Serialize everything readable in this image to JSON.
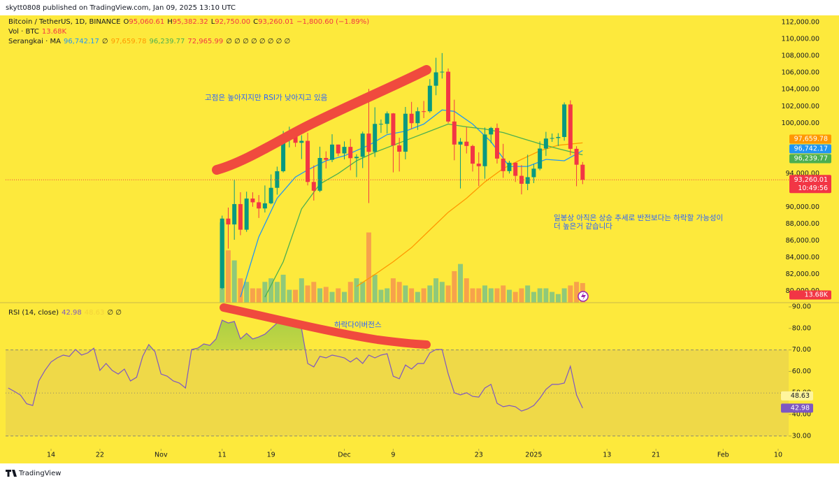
{
  "header": {
    "published": "skytt0808 published on TradingView.com, Jan 09, 2025 13:10 UTC",
    "brand": "TradingView"
  },
  "annotations": [
    "고점은 높아지지만 RSI가 낮아지고 있음",
    "하락다이버전스",
    "일봉상 아직은 상승 추세로 반전보다는 하락할 가능성이",
    "더 높은거 같습니다"
  ],
  "chart_data": [
    {
      "type": "candlestick",
      "title": "Bitcoin / TetherUS, 1D, BINANCE",
      "ohlc_legend": [
        {
          "key": "O",
          "value": "95,060.61"
        },
        {
          "key": "H",
          "value": "95,382.32"
        },
        {
          "key": "L",
          "value": "92,750.00"
        },
        {
          "key": "C",
          "value": "93,260.01"
        }
      ],
      "change": "−1,800.60 (−1.89%)",
      "x": [
        42,
        43,
        44,
        45,
        46,
        47,
        48,
        49,
        50,
        51,
        52,
        53,
        54,
        55,
        56,
        57,
        58,
        59,
        60,
        61,
        62,
        63,
        64,
        65,
        66,
        67,
        68,
        69,
        70,
        71,
        72,
        73,
        74,
        75,
        76,
        77,
        78,
        79,
        80,
        81,
        82,
        83,
        84,
        85,
        86,
        87,
        88,
        89,
        90,
        91,
        92,
        93,
        94,
        95,
        96,
        97,
        98,
        99,
        100,
        101
      ],
      "open": [
        80370,
        88648,
        87952,
        90375,
        87325,
        91032,
        90587,
        89855,
        90465,
        92310,
        94287,
        98318,
        98893,
        97672,
        97900,
        93010,
        91965,
        95863,
        95643,
        97460,
        96407,
        97185,
        95840,
        96002,
        98768,
        96593,
        99920,
        99923,
        101171,
        97356,
        96613,
        101129,
        100004,
        101424,
        101420,
        104463,
        106058,
        106133,
        100204,
        97461,
        97805,
        97291,
        95186,
        94881,
        98663,
        99430,
        95791,
        94299,
        95300,
        93738,
        92792,
        93576,
        94591,
        96984,
        98174,
        98236,
        98363,
        102235,
        96954,
        95060.61
      ],
      "high": [
        89000,
        89956,
        93265,
        91790,
        91850,
        91779,
        91449,
        92594,
        93905,
        94831,
        99073,
        99588,
        98767,
        98564,
        98871,
        94973,
        97208,
        96650,
        98692,
        97463,
        97836,
        98130,
        96305,
        99000,
        104088,
        101898,
        100437,
        101399,
        101215,
        98270,
        101938,
        102540,
        101895,
        102650,
        105250,
        107793,
        108353,
        106524,
        102800,
        98233,
        99540,
        97448,
        96538,
        99487,
        99569,
        99963,
        97544,
        95525,
        95330,
        95024,
        96250,
        95151,
        97839,
        98976,
        98778,
        98813,
        102480,
        102724,
        97258,
        95382.32
      ],
      "low": [
        80216,
        85072,
        86127,
        86668,
        87073,
        90056,
        88722,
        89376,
        90357,
        91500,
        94138,
        97122,
        97180,
        95734,
        92600,
        90791,
        91792,
        94613,
        95368,
        96092,
        95694,
        94395,
        93578,
        94660,
        90500,
        95981,
        98844,
        98772,
        94150,
        94256,
        95700,
        99311,
        99205,
        100609,
        101237,
        103333,
        105321,
        100000,
        95587,
        92232,
        96398,
        94250,
        92520,
        93396,
        97632,
        95200,
        93500,
        94014,
        93010,
        91530,
        92033,
        92870,
        94392,
        96100,
        97781,
        97291,
        97920,
        96181,
        92500,
        92750
      ],
      "close": [
        88648,
        87952,
        90375,
        87325,
        91032,
        90587,
        89855,
        90464,
        92310,
        94286,
        98318,
        98893,
        97672,
        97900,
        93010,
        91965,
        95863,
        95643,
        97460,
        96407,
        97185,
        95840,
        96002,
        98768,
        96593,
        99920,
        99923,
        101171,
        97356,
        96613,
        101129,
        100004,
        101424,
        101420,
        104463,
        106058,
        106133,
        100204,
        97461,
        97805,
        97291,
        95186,
        94881,
        98663,
        99430,
        95791,
        94299,
        95300,
        93738,
        92792,
        93576,
        94591,
        96984,
        98174,
        98236,
        98363,
        102235,
        96954,
        95060.61,
        93260.01
      ],
      "up_color": "#089981",
      "down_color": "#f23645",
      "last_price_label": "93,260.01",
      "countdown": "10:49:56",
      "xlim": [
        6.56,
        134.72
      ],
      "xticks": [
        {
          "value": 14,
          "label": "14"
        },
        {
          "value": 22,
          "label": "22"
        },
        {
          "value": 32,
          "label": "Nov"
        },
        {
          "value": 42,
          "label": "11"
        },
        {
          "value": 50,
          "label": "19"
        },
        {
          "value": 62,
          "label": "Dec"
        },
        {
          "value": 70,
          "label": "9"
        },
        {
          "value": 84,
          "label": "23"
        },
        {
          "value": 93,
          "label": "2025"
        },
        {
          "value": 105,
          "label": "13"
        },
        {
          "value": 113,
          "label": "21"
        },
        {
          "value": 124,
          "label": "Feb"
        },
        {
          "value": 133,
          "label": "10"
        }
      ],
      "ylim": [
        78639,
        112672
      ],
      "yticks": [
        {
          "value": 80000,
          "label": "80,000.00"
        },
        {
          "value": 82000,
          "label": "82,000.00"
        },
        {
          "value": 84000,
          "label": "84,000.00"
        },
        {
          "value": 86000,
          "label": "86,000.00"
        },
        {
          "value": 88000,
          "label": "88,000.00"
        },
        {
          "value": 90000,
          "label": "90,000.00"
        },
        {
          "value": 94000,
          "label": "94,000.00"
        },
        {
          "value": 100000,
          "label": "100,000.00"
        },
        {
          "value": 102000,
          "label": "102,000.00"
        },
        {
          "value": 104000,
          "label": "104,000.00"
        },
        {
          "value": 106000,
          "label": "106,000.00"
        },
        {
          "value": 108000,
          "label": "108,000.00"
        },
        {
          "value": 110000,
          "label": "110,000.00"
        },
        {
          "value": 112000,
          "label": "112,000.00"
        }
      ],
      "volume": {
        "title": "Vol · BTC",
        "last_label": "13.68K",
        "up_color": "#8fc97a",
        "down_color": "#f7a24b",
        "vlim": [
          0,
          60000
        ],
        "values": [
          56000,
          36500,
          29500,
          17000,
          14500,
          10000,
          10000,
          14500,
          17000,
          14500,
          19500,
          9000,
          9000,
          17000,
          12000,
          14500,
          10000,
          11000,
          7500,
          10000,
          7500,
          14500,
          17000,
          14500,
          49000,
          19500,
          9000,
          10000,
          17000,
          14500,
          12000,
          10000,
          7500,
          10000,
          12000,
          17000,
          14500,
          12000,
          22000,
          27000,
          17000,
          10000,
          10000,
          12000,
          10000,
          10000,
          12000,
          9000,
          7500,
          10000,
          12000,
          7500,
          10000,
          10000,
          7500,
          6000,
          10000,
          12000,
          14500,
          13680
        ]
      },
      "ma_title": "Serangkai · MA",
      "ma_gap": "∅",
      "ma_tail": "∅ ∅ ∅ ∅ ∅ ∅ ∅ ∅",
      "moving_averages": [
        {
          "color": "#2196f3",
          "last_label": "96,742.17",
          "x": [
            45,
            48,
            51,
            54,
            56,
            59,
            62,
            66,
            69,
            72,
            75,
            78,
            80,
            83,
            86,
            89,
            92,
            95,
            98,
            101
          ],
          "values": [
            79300,
            86450,
            91070,
            93600,
            94440,
            95530,
            96120,
            97380,
            98640,
            99060,
            99900,
            101580,
            101410,
            99900,
            97800,
            94860,
            94860,
            95700,
            95530,
            96742.17
          ]
        },
        {
          "color": "#ff9800",
          "last_label": "97,659.78",
          "x": [
            64,
            67,
            70,
            73,
            76,
            79,
            82,
            85,
            88,
            91,
            94,
            97,
            101
          ],
          "values": [
            80570,
            82000,
            83510,
            85190,
            87290,
            89400,
            91070,
            93010,
            94610,
            95700,
            96710,
            97380,
            97659.78
          ]
        },
        {
          "color": "#4caf50",
          "last_label": "96,239.77",
          "x": [
            49,
            52,
            55,
            58,
            61,
            64,
            67,
            70,
            73,
            76,
            79,
            82,
            85,
            88,
            91,
            94,
            97,
            101
          ],
          "values": [
            79300,
            83510,
            89800,
            92760,
            94020,
            95530,
            96540,
            97380,
            98220,
            99060,
            99900,
            99570,
            99310,
            98890,
            98220,
            97550,
            96960,
            96239.77
          ]
        },
        {
          "color": "#f23645",
          "last_label": "72,965.99",
          "x": [
            101
          ],
          "values": [
            72965.99
          ]
        }
      ]
    },
    {
      "type": "line",
      "title": "RSI (14, close)",
      "color": "#7e57c2",
      "ma_value": 48.63,
      "ma_color": "#f3d23a",
      "tail": "∅ ∅",
      "x": [
        7,
        8,
        9,
        10,
        11,
        12,
        13,
        14,
        15,
        16,
        17,
        18,
        19,
        20,
        21,
        22,
        23,
        24,
        25,
        26,
        27,
        28,
        29,
        30,
        31,
        32,
        33,
        34,
        35,
        36,
        37,
        38,
        39,
        40,
        41,
        42,
        43,
        44,
        45,
        46,
        47,
        48,
        49,
        50,
        51,
        52,
        53,
        54,
        55,
        56,
        57,
        58,
        59,
        60,
        61,
        62,
        63,
        64,
        65,
        66,
        67,
        68,
        69,
        70,
        71,
        72,
        73,
        74,
        75,
        76,
        77,
        78,
        79,
        80,
        81,
        82,
        83,
        84,
        85,
        86,
        87,
        88,
        89,
        90,
        91,
        92,
        93,
        94,
        95,
        96,
        97,
        98,
        99,
        100,
        101
      ],
      "values": [
        52.3,
        50.7,
        49,
        45,
        44.2,
        55.6,
        60.5,
        64.4,
        66.3,
        67.6,
        67,
        70.2,
        67.6,
        68.6,
        70.8,
        60.5,
        63.7,
        60.5,
        58.8,
        61.1,
        55.6,
        57.3,
        67,
        72.5,
        69.2,
        58.8,
        57.8,
        55.6,
        54.6,
        52.3,
        70.2,
        70.8,
        72.8,
        72.1,
        75.1,
        83.8,
        82.5,
        83.2,
        75.1,
        77.7,
        75.1,
        76,
        77.3,
        79.9,
        82.5,
        83.2,
        82.5,
        82.2,
        79.9,
        63.7,
        62.1,
        67,
        66.3,
        67.6,
        67,
        66.3,
        64.4,
        66.3,
        63.7,
        67.6,
        66.3,
        67.6,
        68.2,
        57.8,
        56.6,
        63,
        61.1,
        63.7,
        63.7,
        68.6,
        70.2,
        70.2,
        58.8,
        50.1,
        49.1,
        50.1,
        48.4,
        48.1,
        52.3,
        54,
        45.2,
        43.6,
        44.2,
        43.6,
        41.6,
        42.6,
        44.2,
        47.5,
        51.7,
        54,
        54,
        54.6,
        62.4,
        49.1,
        42.98
      ],
      "bands": [
        70,
        50,
        30
      ],
      "ylim": [
        24.74,
        91.95
      ],
      "yticks": [
        {
          "value": 30,
          "label": "30.00"
        },
        {
          "value": 40,
          "label": "40.00"
        },
        {
          "value": 50,
          "label": "50.00"
        },
        {
          "value": 60,
          "label": "60.00"
        },
        {
          "value": 70,
          "label": "70.00"
        },
        {
          "value": 80,
          "label": "80.00"
        },
        {
          "value": 90,
          "label": "90.00"
        }
      ]
    }
  ]
}
